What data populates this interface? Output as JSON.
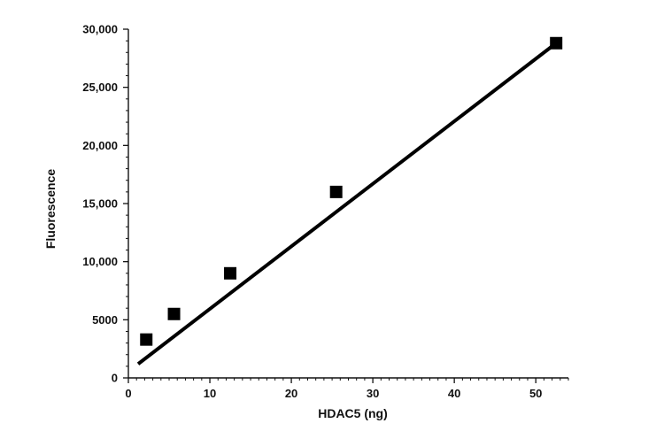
{
  "chart_data": {
    "type": "line",
    "xlabel": "HDAC5 (ng)",
    "ylabel": "Fluorescence",
    "xlim": [
      0,
      54
    ],
    "ylim": [
      0,
      30000
    ],
    "x_ticks": [
      0,
      10,
      20,
      30,
      40,
      50
    ],
    "x_tick_labels": [
      "0",
      "10",
      "20",
      "30",
      "40",
      "50"
    ],
    "y_ticks": [
      0,
      5000,
      10000,
      15000,
      20000,
      25000,
      30000
    ],
    "y_tick_labels": [
      "0",
      "5000",
      "10,000",
      "15,000",
      "20,000",
      "25,000",
      "30,000"
    ],
    "series": [
      {
        "marker": "square",
        "color": "#000000",
        "x": [
          2.2,
          5.6,
          12.5,
          25.5,
          52.5
        ],
        "y": [
          3300,
          5500,
          9000,
          16000,
          28800
        ]
      }
    ],
    "fit_line": {
      "x": [
        1.2,
        52.5
      ],
      "y": [
        1200,
        28800
      ],
      "color": "#000000"
    },
    "grid": false,
    "legend": "none"
  }
}
